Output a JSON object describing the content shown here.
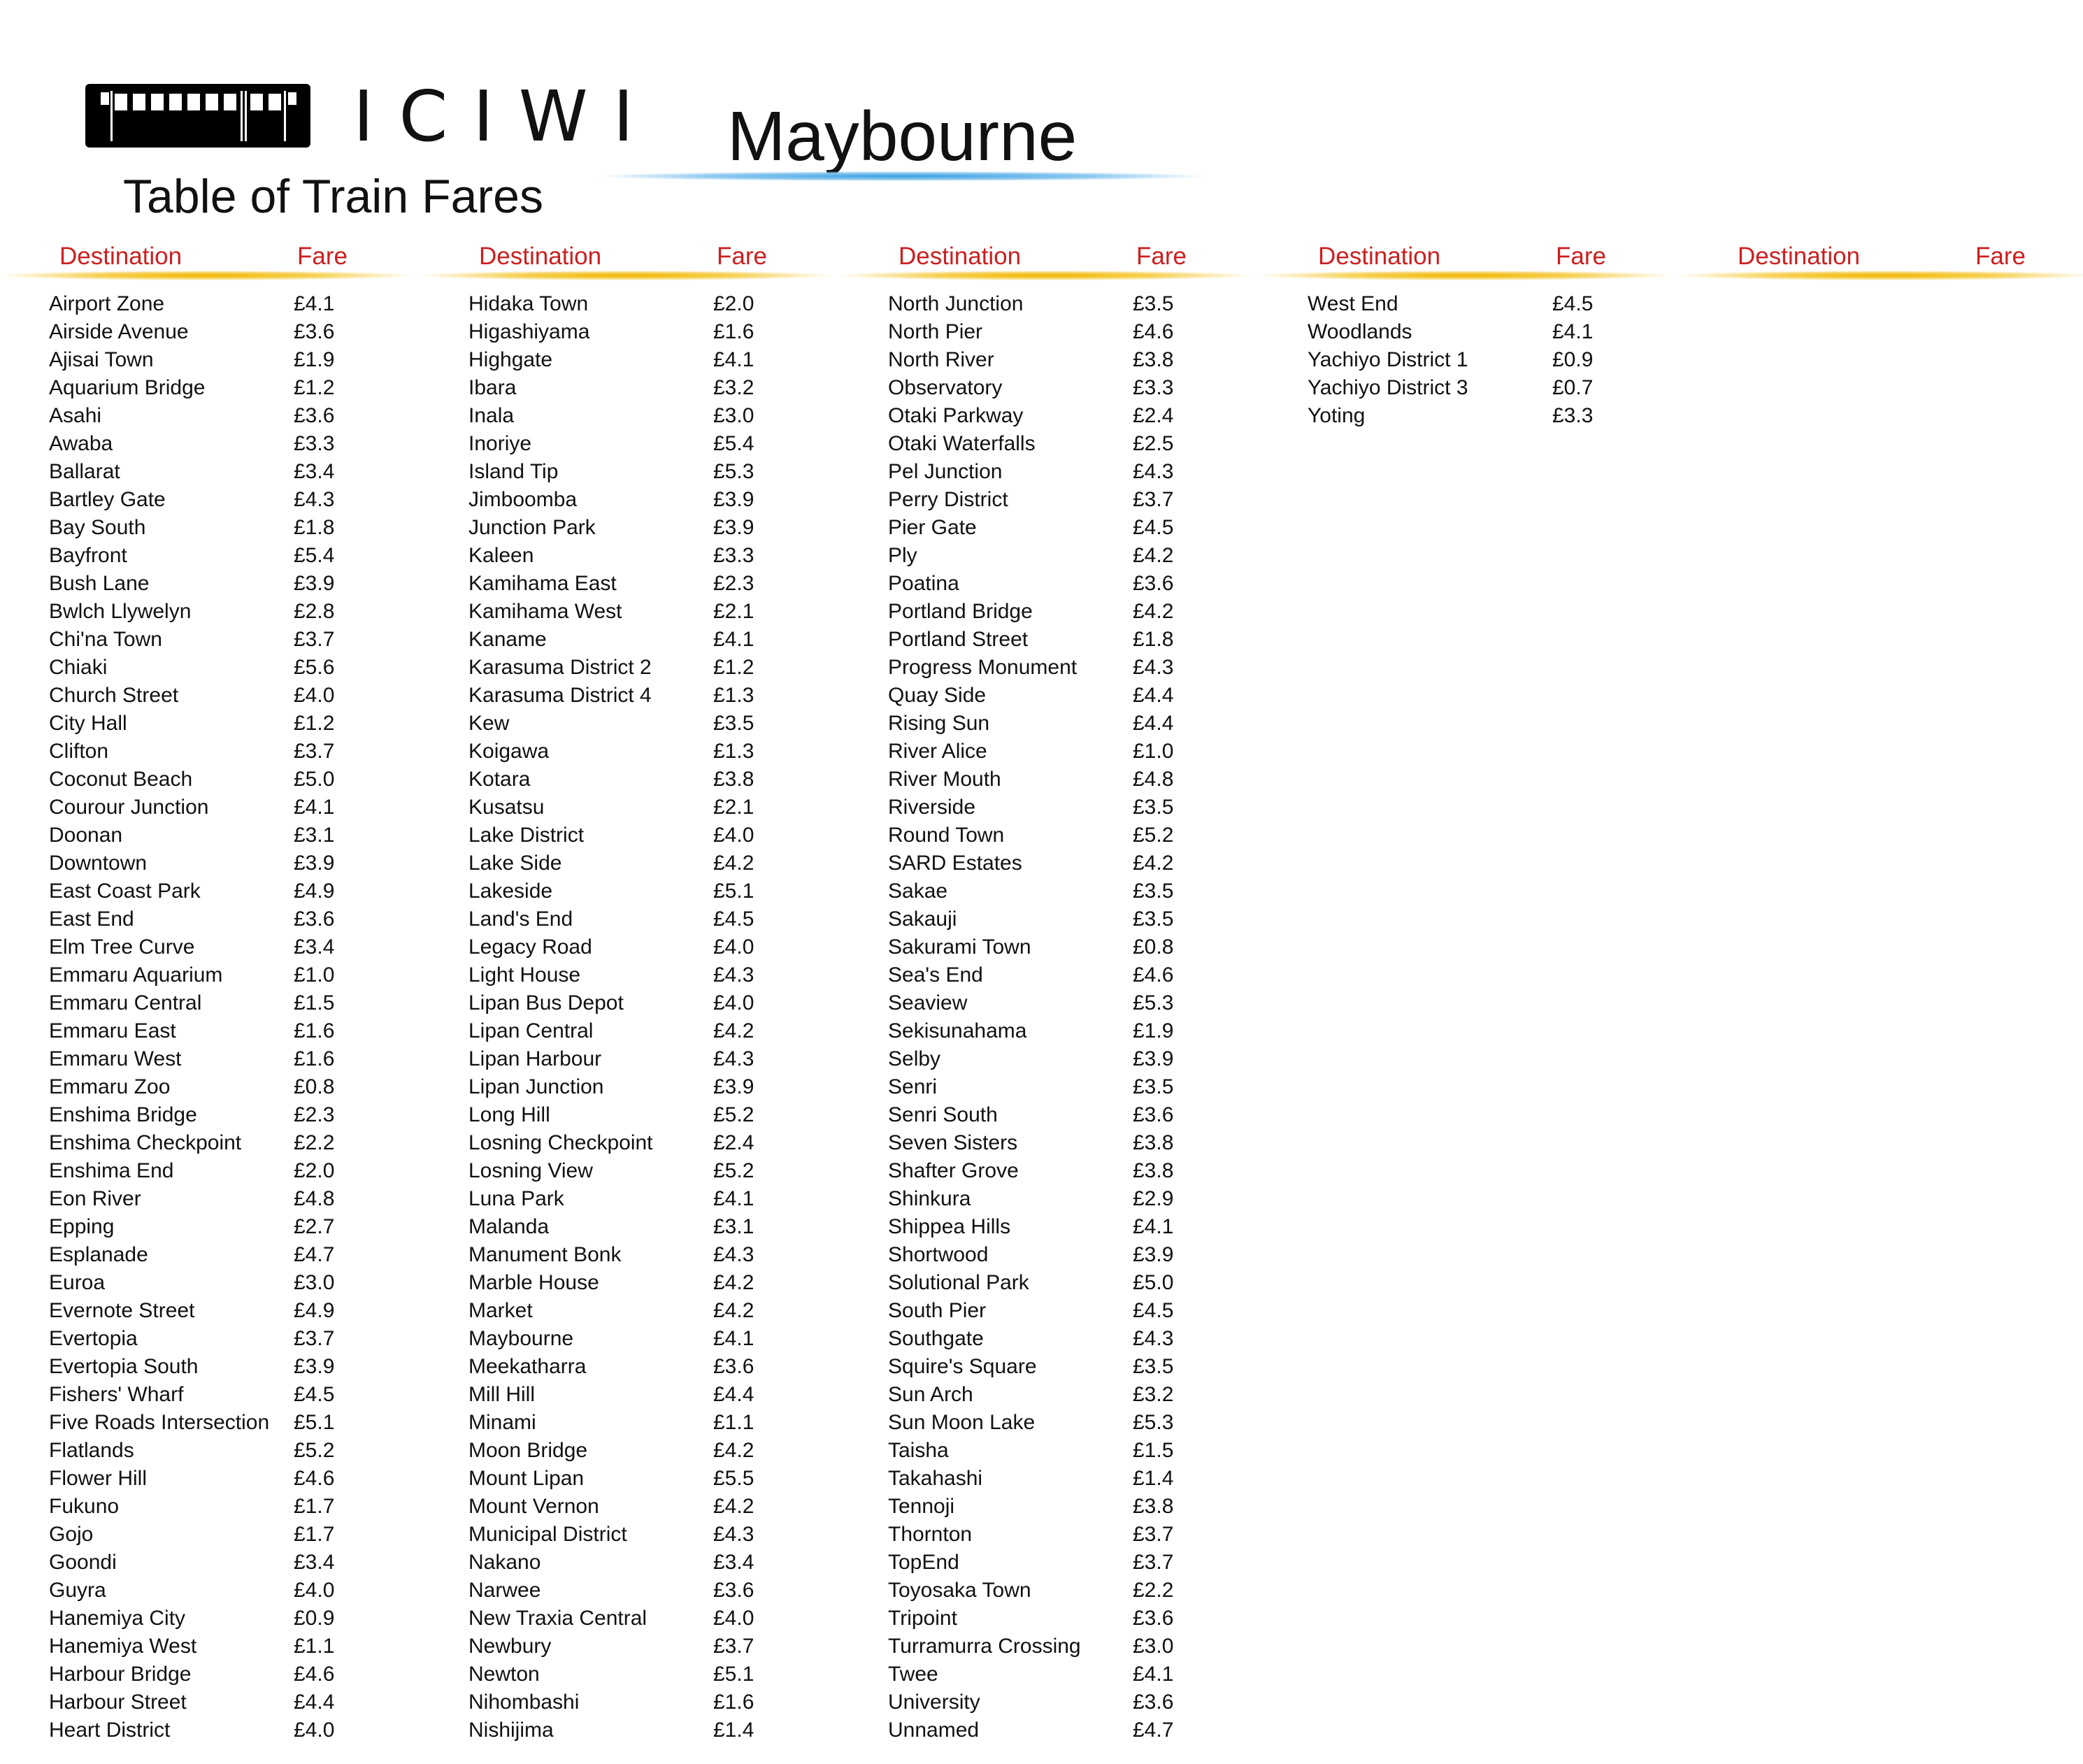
{
  "header": {
    "brand": "ICIWI",
    "subtitle": "Table of Train Fares",
    "city": "Maybourne"
  },
  "colors": {
    "heading_red": "#cc1f1f",
    "accent_gold": "#f0b400",
    "accent_blue": "#3aa0e0"
  },
  "table": {
    "columns": [
      {
        "dest_label": "Destination",
        "fare_label": "Fare",
        "rows": [
          {
            "name": "Airport Zone",
            "fare": "£4.1"
          },
          {
            "name": "Airside Avenue",
            "fare": "£3.6"
          },
          {
            "name": "Ajisai Town",
            "fare": "£1.9"
          },
          {
            "name": "Aquarium Bridge",
            "fare": "£1.2"
          },
          {
            "name": "Asahi",
            "fare": "£3.6"
          },
          {
            "name": "Awaba",
            "fare": "£3.3"
          },
          {
            "name": "Ballarat",
            "fare": "£3.4"
          },
          {
            "name": "Bartley Gate",
            "fare": "£4.3"
          },
          {
            "name": "Bay South",
            "fare": "£1.8"
          },
          {
            "name": "Bayfront",
            "fare": "£5.4"
          },
          {
            "name": "Bush Lane",
            "fare": "£3.9"
          },
          {
            "name": "Bwlch Llywelyn",
            "fare": "£2.8"
          },
          {
            "name": "Chi'na Town",
            "fare": "£3.7"
          },
          {
            "name": "Chiaki",
            "fare": "£5.6"
          },
          {
            "name": "Church Street",
            "fare": "£4.0"
          },
          {
            "name": "City Hall",
            "fare": "£1.2"
          },
          {
            "name": "Clifton",
            "fare": "£3.7"
          },
          {
            "name": "Coconut Beach",
            "fare": "£5.0"
          },
          {
            "name": "Courour Junction",
            "fare": "£4.1"
          },
          {
            "name": "Doonan",
            "fare": "£3.1"
          },
          {
            "name": "Downtown",
            "fare": "£3.9"
          },
          {
            "name": "East Coast Park",
            "fare": "£4.9"
          },
          {
            "name": "East End",
            "fare": "£3.6"
          },
          {
            "name": "Elm Tree Curve",
            "fare": "£3.4"
          },
          {
            "name": "Emmaru Aquarium",
            "fare": "£1.0"
          },
          {
            "name": "Emmaru Central",
            "fare": "£1.5"
          },
          {
            "name": "Emmaru East",
            "fare": "£1.6"
          },
          {
            "name": "Emmaru West",
            "fare": "£1.6"
          },
          {
            "name": "Emmaru Zoo",
            "fare": "£0.8"
          },
          {
            "name": "Enshima Bridge",
            "fare": "£2.3"
          },
          {
            "name": "Enshima Checkpoint",
            "fare": "£2.2"
          },
          {
            "name": "Enshima End",
            "fare": "£2.0"
          },
          {
            "name": "Eon River",
            "fare": "£4.8"
          },
          {
            "name": "Epping",
            "fare": "£2.7"
          },
          {
            "name": "Esplanade",
            "fare": "£4.7"
          },
          {
            "name": "Euroa",
            "fare": "£3.0"
          },
          {
            "name": "Evernote Street",
            "fare": "£4.9"
          },
          {
            "name": "Evertopia",
            "fare": "£3.7"
          },
          {
            "name": "Evertopia South",
            "fare": "£3.9"
          },
          {
            "name": "Fishers' Wharf",
            "fare": "£4.5"
          },
          {
            "name": "Five Roads Intersection",
            "fare": "£5.1"
          },
          {
            "name": "Flatlands",
            "fare": "£5.2"
          },
          {
            "name": "Flower Hill",
            "fare": "£4.6"
          },
          {
            "name": "Fukuno",
            "fare": "£1.7"
          },
          {
            "name": "Gojo",
            "fare": "£1.7"
          },
          {
            "name": "Goondi",
            "fare": "£3.4"
          },
          {
            "name": "Guyra",
            "fare": "£4.0"
          },
          {
            "name": "Hanemiya City",
            "fare": "£0.9"
          },
          {
            "name": "Hanemiya West",
            "fare": "£1.1"
          },
          {
            "name": "Harbour Bridge",
            "fare": "£4.6"
          },
          {
            "name": "Harbour Street",
            "fare": "£4.4"
          },
          {
            "name": "Heart District",
            "fare": "£4.0"
          }
        ]
      },
      {
        "dest_label": "Destination",
        "fare_label": "Fare",
        "rows": [
          {
            "name": "Hidaka Town",
            "fare": "£2.0"
          },
          {
            "name": "Higashiyama",
            "fare": "£1.6"
          },
          {
            "name": "Highgate",
            "fare": "£4.1"
          },
          {
            "name": "Ibara",
            "fare": "£3.2"
          },
          {
            "name": "Inala",
            "fare": "£3.0"
          },
          {
            "name": "Inoriye",
            "fare": "£5.4"
          },
          {
            "name": "Island Tip",
            "fare": "£5.3"
          },
          {
            "name": "Jimboomba",
            "fare": "£3.9"
          },
          {
            "name": "Junction Park",
            "fare": "£3.9"
          },
          {
            "name": "Kaleen",
            "fare": "£3.3"
          },
          {
            "name": "Kamihama East",
            "fare": "£2.3"
          },
          {
            "name": "Kamihama West",
            "fare": "£2.1"
          },
          {
            "name": "Kaname",
            "fare": "£4.1"
          },
          {
            "name": "Karasuma District 2",
            "fare": "£1.2"
          },
          {
            "name": "Karasuma District 4",
            "fare": "£1.3"
          },
          {
            "name": "Kew",
            "fare": "£3.5"
          },
          {
            "name": "Koigawa",
            "fare": "£1.3"
          },
          {
            "name": "Kotara",
            "fare": "£3.8"
          },
          {
            "name": "Kusatsu",
            "fare": "£2.1"
          },
          {
            "name": "Lake District",
            "fare": "£4.0"
          },
          {
            "name": "Lake Side",
            "fare": "£4.2"
          },
          {
            "name": "Lakeside",
            "fare": "£5.1"
          },
          {
            "name": "Land's End",
            "fare": "£4.5"
          },
          {
            "name": "Legacy Road",
            "fare": "£4.0"
          },
          {
            "name": "Light House",
            "fare": "£4.3"
          },
          {
            "name": "Lipan Bus Depot",
            "fare": "£4.0"
          },
          {
            "name": "Lipan Central",
            "fare": "£4.2"
          },
          {
            "name": "Lipan Harbour",
            "fare": "£4.3"
          },
          {
            "name": "Lipan Junction",
            "fare": "£3.9"
          },
          {
            "name": "Long Hill",
            "fare": "£5.2"
          },
          {
            "name": "Losning Checkpoint",
            "fare": "£2.4"
          },
          {
            "name": "Losning View",
            "fare": "£5.2"
          },
          {
            "name": "Luna Park",
            "fare": "£4.1"
          },
          {
            "name": "Malanda",
            "fare": "£3.1"
          },
          {
            "name": "Manument Bonk",
            "fare": "£4.3"
          },
          {
            "name": "Marble House",
            "fare": "£4.2"
          },
          {
            "name": "Market",
            "fare": "£4.2"
          },
          {
            "name": "Maybourne",
            "fare": "£4.1"
          },
          {
            "name": "Meekatharra",
            "fare": "£3.6"
          },
          {
            "name": "Mill Hill",
            "fare": "£4.4"
          },
          {
            "name": "Minami",
            "fare": "£1.1"
          },
          {
            "name": "Moon Bridge",
            "fare": "£4.2"
          },
          {
            "name": "Mount Lipan",
            "fare": "£5.5"
          },
          {
            "name": "Mount Vernon",
            "fare": "£4.2"
          },
          {
            "name": "Municipal District",
            "fare": "£4.3"
          },
          {
            "name": "Nakano",
            "fare": "£3.4"
          },
          {
            "name": "Narwee",
            "fare": "£3.6"
          },
          {
            "name": "New Traxia Central",
            "fare": "£4.0"
          },
          {
            "name": "Newbury",
            "fare": "£3.7"
          },
          {
            "name": "Newton",
            "fare": "£5.1"
          },
          {
            "name": "Nihombashi",
            "fare": "£1.6"
          },
          {
            "name": "Nishijima",
            "fare": "£1.4"
          }
        ]
      },
      {
        "dest_label": "Destination",
        "fare_label": "Fare",
        "rows": [
          {
            "name": "North Junction",
            "fare": "£3.5"
          },
          {
            "name": "North Pier",
            "fare": "£4.6"
          },
          {
            "name": "North River",
            "fare": "£3.8"
          },
          {
            "name": "Observatory",
            "fare": "£3.3"
          },
          {
            "name": "Otaki Parkway",
            "fare": "£2.4"
          },
          {
            "name": "Otaki Waterfalls",
            "fare": "£2.5"
          },
          {
            "name": "Pel Junction",
            "fare": "£4.3"
          },
          {
            "name": "Perry District",
            "fare": "£3.7"
          },
          {
            "name": "Pier Gate",
            "fare": "£4.5"
          },
          {
            "name": "Ply",
            "fare": "£4.2"
          },
          {
            "name": "Poatina",
            "fare": "£3.6"
          },
          {
            "name": "Portland Bridge",
            "fare": "£4.2"
          },
          {
            "name": "Portland Street",
            "fare": "£1.8"
          },
          {
            "name": "Progress Monument",
            "fare": "£4.3"
          },
          {
            "name": "Quay Side",
            "fare": "£4.4"
          },
          {
            "name": "Rising Sun",
            "fare": "£4.4"
          },
          {
            "name": "River Alice",
            "fare": "£1.0"
          },
          {
            "name": "River Mouth",
            "fare": "£4.8"
          },
          {
            "name": "Riverside",
            "fare": "£3.5"
          },
          {
            "name": "Round Town",
            "fare": "£5.2"
          },
          {
            "name": "SARD Estates",
            "fare": "£4.2"
          },
          {
            "name": "Sakae",
            "fare": "£3.5"
          },
          {
            "name": "Sakauji",
            "fare": "£3.5"
          },
          {
            "name": "Sakurami Town",
            "fare": "£0.8"
          },
          {
            "name": "Sea's End",
            "fare": "£4.6"
          },
          {
            "name": "Seaview",
            "fare": "£5.3"
          },
          {
            "name": "Sekisunahama",
            "fare": "£1.9"
          },
          {
            "name": "Selby",
            "fare": "£3.9"
          },
          {
            "name": "Senri",
            "fare": "£3.5"
          },
          {
            "name": "Senri South",
            "fare": "£3.6"
          },
          {
            "name": "Seven Sisters",
            "fare": "£3.8"
          },
          {
            "name": "Shafter Grove",
            "fare": "£3.8"
          },
          {
            "name": "Shinkura",
            "fare": "£2.9"
          },
          {
            "name": "Shippea Hills",
            "fare": "£4.1"
          },
          {
            "name": "Shortwood",
            "fare": "£3.9"
          },
          {
            "name": "Solutional Park",
            "fare": "£5.0"
          },
          {
            "name": "South Pier",
            "fare": "£4.5"
          },
          {
            "name": "Southgate",
            "fare": "£4.3"
          },
          {
            "name": "Squire's Square",
            "fare": "£3.5"
          },
          {
            "name": "Sun Arch",
            "fare": "£3.2"
          },
          {
            "name": "Sun Moon Lake",
            "fare": "£5.3"
          },
          {
            "name": "Taisha",
            "fare": "£1.5"
          },
          {
            "name": "Takahashi",
            "fare": "£1.4"
          },
          {
            "name": "Tennoji",
            "fare": "£3.8"
          },
          {
            "name": "Thornton",
            "fare": "£3.7"
          },
          {
            "name": "TopEnd",
            "fare": "£3.7"
          },
          {
            "name": "Toyosaka Town",
            "fare": "£2.2"
          },
          {
            "name": "Tripoint",
            "fare": "£3.6"
          },
          {
            "name": "Turramurra Crossing",
            "fare": "£3.0"
          },
          {
            "name": "Twee",
            "fare": "£4.1"
          },
          {
            "name": "University",
            "fare": "£3.6"
          },
          {
            "name": "Unnamed",
            "fare": "£4.7"
          }
        ]
      },
      {
        "dest_label": "Destination",
        "fare_label": "Fare",
        "rows": [
          {
            "name": "West End",
            "fare": "£4.5"
          },
          {
            "name": "Woodlands",
            "fare": "£4.1"
          },
          {
            "name": "Yachiyo District 1",
            "fare": "£0.9"
          },
          {
            "name": "Yachiyo District 3",
            "fare": "£0.7"
          },
          {
            "name": "Yoting",
            "fare": "£3.3"
          }
        ]
      },
      {
        "dest_label": "Destination",
        "fare_label": "Fare",
        "rows": []
      }
    ]
  }
}
